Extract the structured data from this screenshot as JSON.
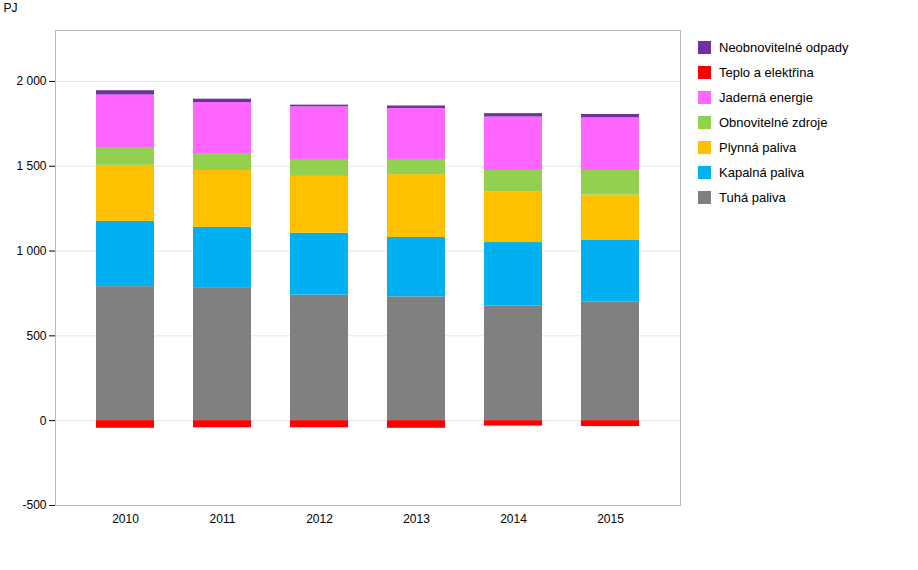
{
  "chart_data": {
    "type": "bar",
    "stacked": true,
    "categories": [
      "2010",
      "2011",
      "2012",
      "2013",
      "2014",
      "2015"
    ],
    "series": [
      {
        "name": "Neobnovitelné odpady",
        "color": "#7030A0",
        "values": [
          25,
          20,
          10,
          15,
          20,
          20
        ]
      },
      {
        "name": "Teplo a elektřina",
        "color": "#FF0000",
        "values": [
          -45,
          -42,
          -42,
          -45,
          -32,
          -35
        ]
      },
      {
        "name": "Jaderná energie",
        "color": "#FF66FF",
        "values": [
          310,
          305,
          310,
          300,
          315,
          310
        ]
      },
      {
        "name": "Obnovitelné zdroje",
        "color": "#92D050",
        "values": [
          105,
          95,
          100,
          90,
          125,
          145
        ]
      },
      {
        "name": "Plynná paliva",
        "color": "#FFC000",
        "values": [
          330,
          335,
          335,
          370,
          300,
          265
        ]
      },
      {
        "name": "Kapalná paliva",
        "color": "#00B0F0",
        "values": [
          385,
          360,
          365,
          350,
          375,
          365
        ]
      },
      {
        "name": "Tuhá paliva",
        "color": "#808080",
        "values": [
          790,
          780,
          740,
          730,
          675,
          700
        ]
      }
    ],
    "ylabel": "PJ",
    "ylim": [
      -500,
      2300
    ],
    "yticks": [
      -500,
      0,
      500,
      {
        "value": 1000,
        "label": "1 000"
      },
      {
        "value": 1500,
        "label": "1 500"
      },
      {
        "value": 2000,
        "label": "2 000"
      }
    ],
    "grid": true,
    "legend": "right"
  }
}
